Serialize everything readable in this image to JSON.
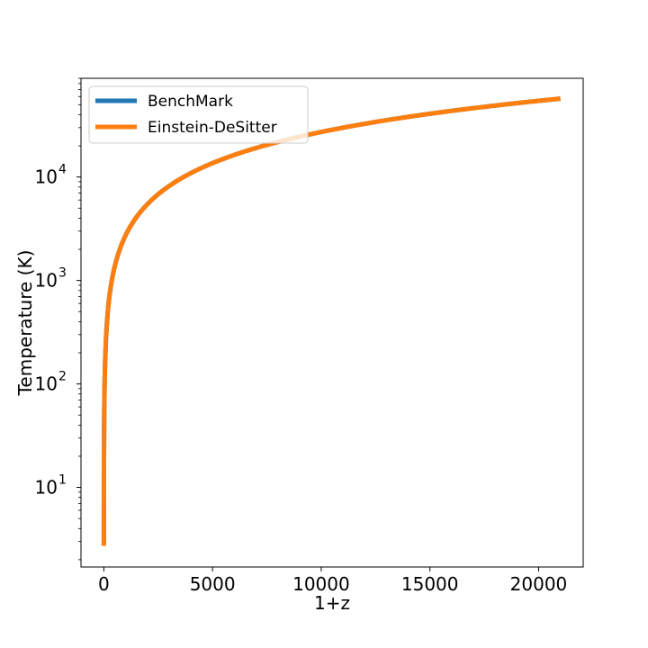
{
  "chart_data": {
    "type": "line",
    "xlabel": "1+z",
    "ylabel": "Temperature (K)",
    "xlim": [
      -1050,
      22050
    ],
    "ylim": [
      1.7,
      90000
    ],
    "yscale": "log",
    "x_ticks": [
      {
        "value": 0,
        "label": "0"
      },
      {
        "value": 5000,
        "label": "5000"
      },
      {
        "value": 10000,
        "label": "10000"
      },
      {
        "value": 15000,
        "label": "15000"
      },
      {
        "value": 20000,
        "label": "20000"
      }
    ],
    "y_ticks": [
      {
        "value": 10,
        "base": "10",
        "exp": "1"
      },
      {
        "value": 100,
        "base": "10",
        "exp": "2"
      },
      {
        "value": 1000,
        "base": "10",
        "exp": "3"
      },
      {
        "value": 10000,
        "base": "10",
        "exp": "4"
      }
    ],
    "grid": false,
    "legend_position": "upper-left",
    "series": [
      {
        "name": "BenchMark",
        "color": "#1f77b4",
        "x": [
          1,
          5,
          10,
          20,
          30,
          50,
          75,
          100,
          150,
          200,
          300,
          400,
          500,
          750,
          1000,
          1500,
          2000,
          3000,
          4000,
          5000,
          6000,
          7000,
          8000,
          9000,
          10000,
          12000,
          14000,
          16000,
          18000,
          20000,
          21000
        ],
        "y": [
          2.725,
          13.6,
          27.3,
          54.5,
          81.8,
          136,
          204,
          273,
          409,
          545,
          818,
          1090,
          1363,
          2044,
          2725,
          4088,
          5450,
          8175,
          10900,
          13625,
          16350,
          19075,
          21800,
          24525,
          27250,
          32700,
          38150,
          43600,
          49050,
          54500,
          57225
        ]
      },
      {
        "name": "Einstein-DeSitter",
        "color": "#ff7f0e",
        "x": [
          1,
          5,
          10,
          20,
          30,
          50,
          75,
          100,
          150,
          200,
          300,
          400,
          500,
          750,
          1000,
          1500,
          2000,
          3000,
          4000,
          5000,
          6000,
          7000,
          8000,
          9000,
          10000,
          12000,
          14000,
          16000,
          18000,
          20000,
          21000
        ],
        "y": [
          2.725,
          13.6,
          27.3,
          54.5,
          81.8,
          136,
          204,
          273,
          409,
          545,
          818,
          1090,
          1363,
          2044,
          2725,
          4088,
          5450,
          8175,
          10900,
          13625,
          16350,
          19075,
          21800,
          24525,
          27250,
          32700,
          38150,
          43600,
          49050,
          54500,
          57225
        ]
      }
    ]
  }
}
